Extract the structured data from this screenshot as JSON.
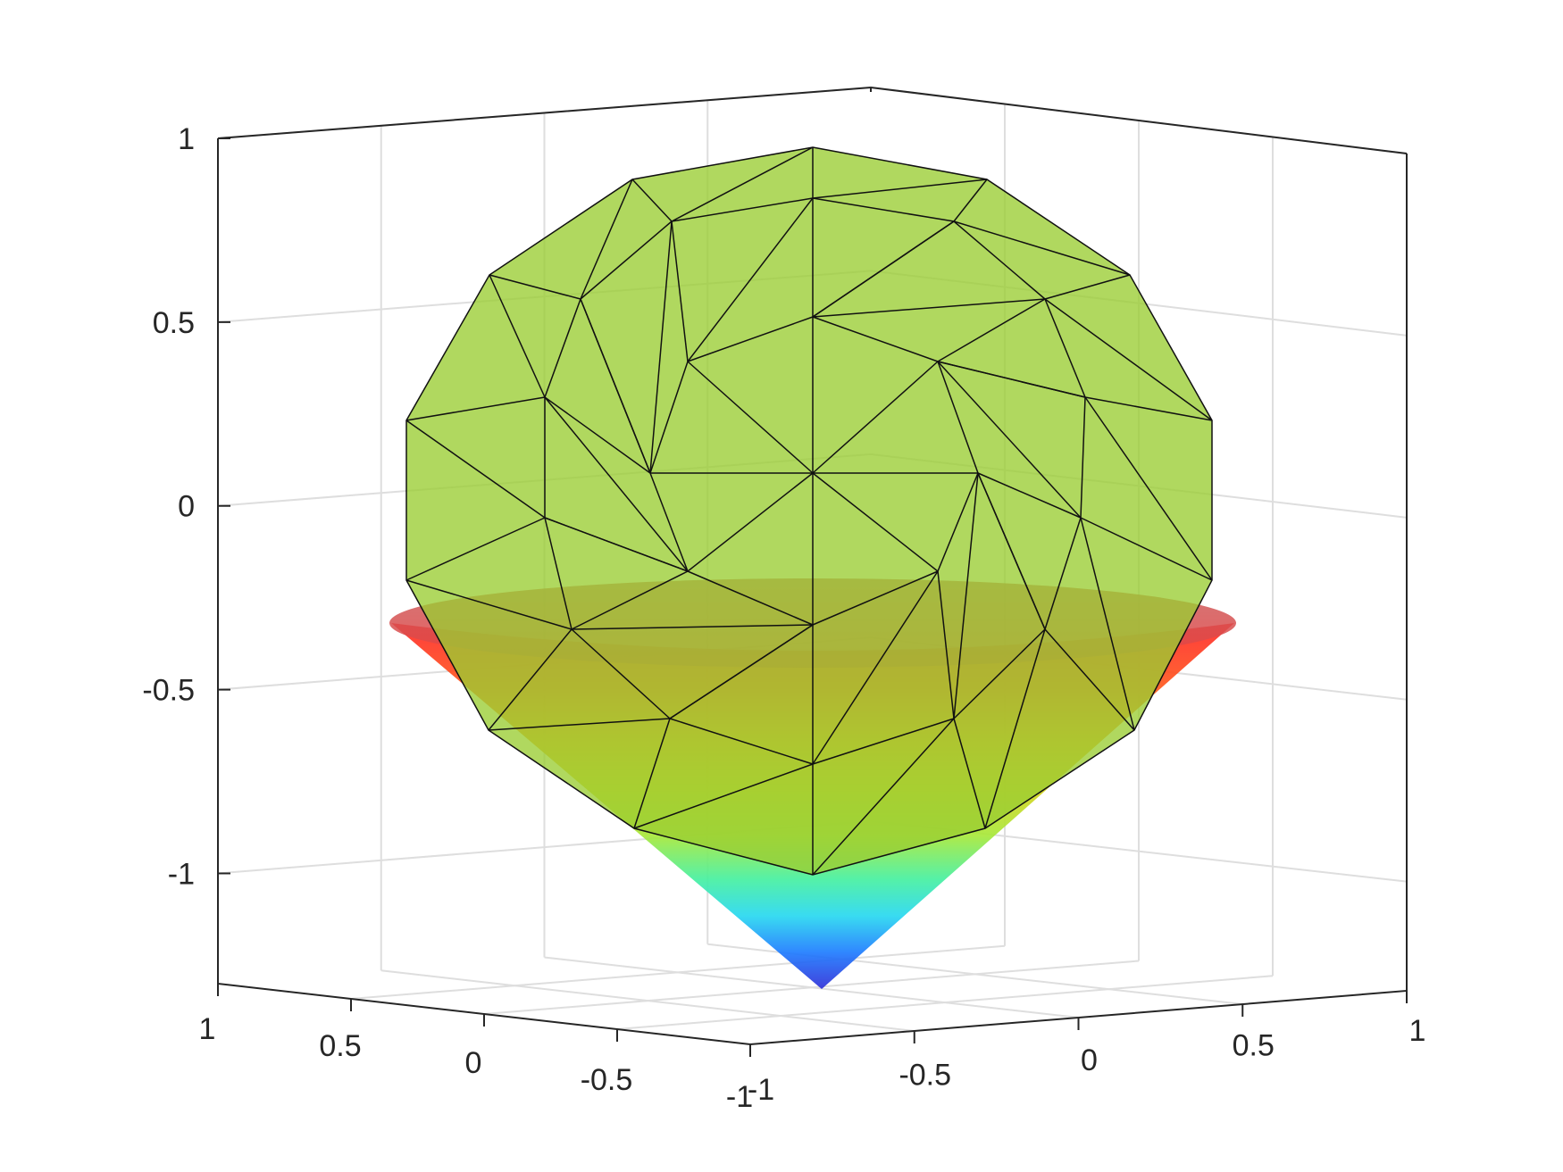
{
  "chart_data": {
    "type": "surface3d",
    "title": "",
    "xlabel": "",
    "ylabel": "",
    "zlabel": "",
    "grid": true,
    "box": true,
    "xlim": [
      -1,
      1
    ],
    "ylim": [
      -1,
      1
    ],
    "zlim": [
      -1.3,
      1
    ],
    "x_ticks": [
      "-1",
      "-0.5",
      "0",
      "0.5",
      "1"
    ],
    "y_ticks": [
      "1",
      "0.5",
      "0",
      "-0.5",
      "-1"
    ],
    "z_ticks": [
      "1",
      "0.5",
      "0",
      "-0.5",
      "-1"
    ],
    "surfaces": [
      {
        "kind": "polyhedral sphere (triangulated)",
        "center": [
          0,
          0,
          0
        ],
        "radius": 1,
        "color": "#9acd32",
        "edge_color": "#000000",
        "alpha": 0.75
      },
      {
        "kind": "cone",
        "apex_z": -1.3,
        "top_z": -0.32,
        "top_radius": 1,
        "colormap": "jet",
        "color_low": "#1e3cff",
        "color_high": "#ff2020",
        "alpha": 0.85
      }
    ]
  }
}
